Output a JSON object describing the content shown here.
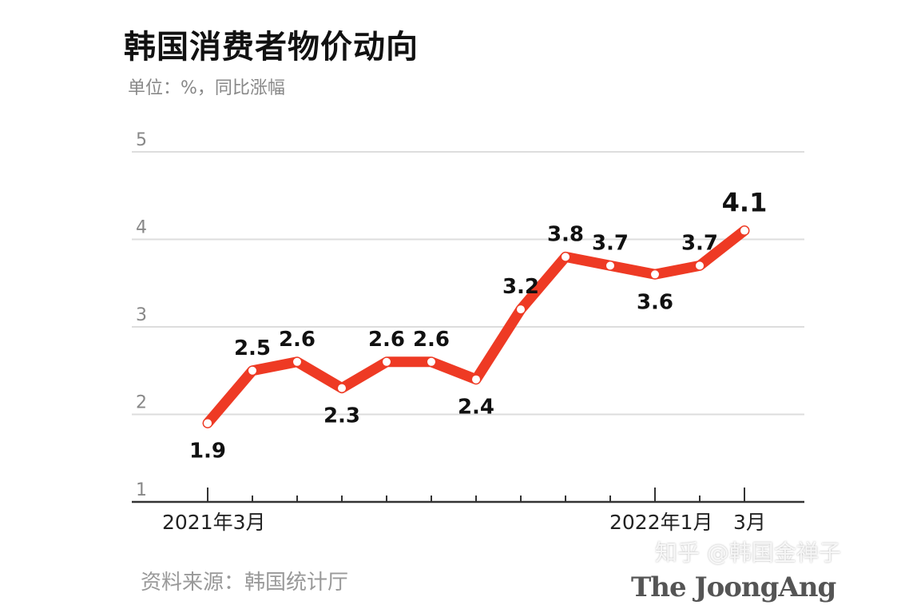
{
  "chart_data": {
    "type": "line",
    "title": "韩国消费者物价动向",
    "subtitle": "单位：%，同比涨幅",
    "ylim": [
      1,
      5
    ],
    "yticks": [
      1,
      2,
      3,
      4,
      5
    ],
    "grid": true,
    "x": [
      "2021-03",
      "2021-04",
      "2021-05",
      "2021-06",
      "2021-07",
      "2021-08",
      "2021-09",
      "2021-10",
      "2021-11",
      "2021-12",
      "2022-01",
      "2022-02",
      "2022-03"
    ],
    "x_tick_labels": [
      {
        "index": 0,
        "label": "2021年3月"
      },
      {
        "index": 10,
        "label": "2022年1月"
      },
      {
        "index": 12,
        "label": "3月"
      }
    ],
    "values": [
      1.9,
      2.5,
      2.6,
      2.3,
      2.6,
      2.6,
      2.4,
      3.2,
      3.8,
      3.7,
      3.6,
      3.7,
      4.1
    ],
    "data_labels": [
      "1.9",
      "2.5",
      "2.6",
      "2.3",
      "2.6",
      "2.6",
      "2.4",
      "3.2",
      "3.8",
      "3.7",
      "3.6",
      "3.7",
      "4.1"
    ],
    "label_positions": [
      "below",
      "above",
      "above",
      "below",
      "above",
      "above",
      "below",
      "above",
      "above",
      "above",
      "below",
      "above",
      "above"
    ],
    "line_color": "#ee3a24",
    "marker_color": "#ffffff"
  },
  "footer": {
    "source": "资料来源：韩国统计厅",
    "logo": "The JoongAng",
    "watermark": "知乎 @韩国金禅子"
  }
}
